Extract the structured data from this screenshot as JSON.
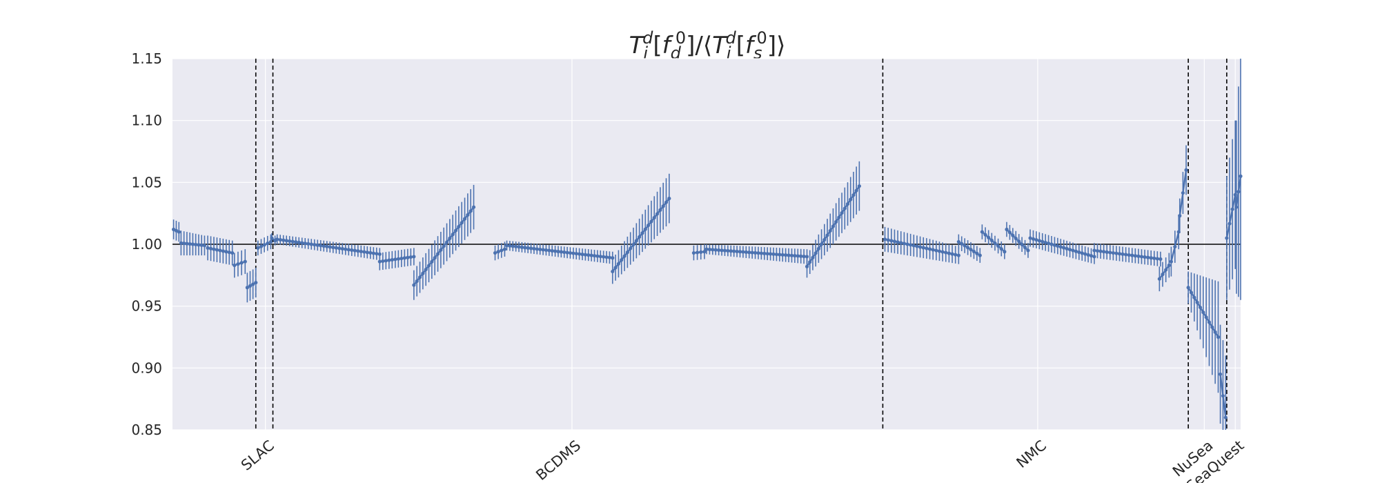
{
  "chart_data": {
    "type": "scatter",
    "title": {
      "runs": [
        {
          "t": "T",
          "s": "main"
        },
        {
          "t": "i",
          "s": "sub"
        },
        {
          "t": "d",
          "s": "sup"
        },
        {
          "t": "[",
          "s": "plain"
        },
        {
          "t": "f",
          "s": "main"
        },
        {
          "t": "d",
          "s": "sub"
        },
        {
          "t": "0",
          "s": "sup"
        },
        {
          "t": "]/⟨",
          "s": "plain"
        },
        {
          "t": "T",
          "s": "main"
        },
        {
          "t": "i",
          "s": "sub"
        },
        {
          "t": "d",
          "s": "sup"
        },
        {
          "t": "[",
          "s": "plain"
        },
        {
          "t": "f",
          "s": "main"
        },
        {
          "t": "s",
          "s": "sub"
        },
        {
          "t": "0",
          "s": "sup"
        },
        {
          "t": "]⟩",
          "s": "plain"
        }
      ]
    },
    "ylim": [
      0.85,
      1.15
    ],
    "yticks": [
      "0.85",
      "0.90",
      "0.95",
      "1.00",
      "1.05",
      "1.10",
      "1.15"
    ],
    "xlim": [
      0,
      1000
    ],
    "reference_line": 1.0,
    "grid": true,
    "boundaries": [
      78,
      94,
      665,
      951,
      987
    ],
    "category_labels": [
      {
        "label": "SLAC",
        "x": 87
      },
      {
        "label": "BCDMS",
        "x": 374
      },
      {
        "label": "NMC",
        "x": 810
      },
      {
        "label": "NuSea",
        "x": 966
      },
      {
        "label": "SeaQuest",
        "x": 995
      }
    ],
    "colors": {
      "points": "#4c72b0",
      "background": "#eaeaf2",
      "grid": "#ffffff",
      "boundary": "#000000"
    },
    "segments": [
      {
        "x0": 1,
        "x1": 6,
        "y0": 1.012,
        "y1": 1.01,
        "e0": 0.008,
        "e1": 0.008,
        "n": 3
      },
      {
        "x0": 8,
        "x1": 30,
        "y0": 1.001,
        "y1": 0.999,
        "e0": 0.01,
        "e1": 0.008,
        "n": 9
      },
      {
        "x0": 33,
        "x1": 56,
        "y0": 0.997,
        "y1": 0.993,
        "e0": 0.01,
        "e1": 0.01,
        "n": 9
      },
      {
        "x0": 58,
        "x1": 68,
        "y0": 0.983,
        "y1": 0.986,
        "e0": 0.01,
        "e1": 0.01,
        "n": 4
      },
      {
        "x0": 70,
        "x1": 78,
        "y0": 0.965,
        "y1": 0.969,
        "e0": 0.012,
        "e1": 0.012,
        "n": 4
      },
      {
        "x0": 80,
        "x1": 92,
        "y0": 0.997,
        "y1": 1.002,
        "e0": 0.006,
        "e1": 0.006,
        "n": 5
      },
      {
        "x0": 93,
        "x1": 96,
        "y0": 1.005,
        "y1": 1.003,
        "e0": 0.004,
        "e1": 0.004,
        "n": 2
      },
      {
        "x0": 98,
        "x1": 194,
        "y0": 1.004,
        "y1": 0.992,
        "e0": 0.004,
        "e1": 0.005,
        "n": 34
      },
      {
        "x0": 194,
        "x1": 226,
        "y0": 0.986,
        "y1": 0.99,
        "e0": 0.007,
        "e1": 0.007,
        "n": 12
      },
      {
        "x0": 226,
        "x1": 282,
        "y0": 0.967,
        "y1": 1.03,
        "e0": 0.012,
        "e1": 0.018,
        "n": 21
      },
      {
        "x0": 302,
        "x1": 311,
        "y0": 0.993,
        "y1": 0.996,
        "e0": 0.006,
        "e1": 0.006,
        "n": 4
      },
      {
        "x0": 313,
        "x1": 412,
        "y0": 0.999,
        "y1": 0.989,
        "e0": 0.004,
        "e1": 0.005,
        "n": 36
      },
      {
        "x0": 412,
        "x1": 465,
        "y0": 0.978,
        "y1": 1.037,
        "e0": 0.01,
        "e1": 0.02,
        "n": 20
      },
      {
        "x0": 488,
        "x1": 498,
        "y0": 0.993,
        "y1": 0.994,
        "e0": 0.006,
        "e1": 0.006,
        "n": 4
      },
      {
        "x0": 500,
        "x1": 594,
        "y0": 0.996,
        "y1": 0.99,
        "e0": 0.004,
        "e1": 0.006,
        "n": 34
      },
      {
        "x0": 594,
        "x1": 643,
        "y0": 0.982,
        "y1": 1.047,
        "e0": 0.009,
        "e1": 0.02,
        "n": 19
      },
      {
        "x0": 667,
        "x1": 736,
        "y0": 1.004,
        "y1": 0.991,
        "e0": 0.01,
        "e1": 0.007,
        "n": 24
      },
      {
        "x0": 736,
        "x1": 756,
        "y0": 1.002,
        "y1": 0.991,
        "e0": 0.006,
        "e1": 0.006,
        "n": 8
      },
      {
        "x0": 758,
        "x1": 779,
        "y0": 1.01,
        "y1": 0.994,
        "e0": 0.006,
        "e1": 0.006,
        "n": 8
      },
      {
        "x0": 781,
        "x1": 801,
        "y0": 1.012,
        "y1": 0.995,
        "e0": 0.006,
        "e1": 0.006,
        "n": 8
      },
      {
        "x0": 803,
        "x1": 863,
        "y0": 1.005,
        "y1": 0.99,
        "e0": 0.007,
        "e1": 0.006,
        "n": 22
      },
      {
        "x0": 863,
        "x1": 925,
        "y0": 0.995,
        "y1": 0.988,
        "e0": 0.006,
        "e1": 0.006,
        "n": 22
      },
      {
        "x0": 924,
        "x1": 933,
        "y0": 0.972,
        "y1": 0.983,
        "e0": 0.01,
        "e1": 0.01,
        "n": 4
      },
      {
        "x0": 935,
        "x1": 942,
        "y0": 0.986,
        "y1": 1.01,
        "e0": 0.012,
        "e1": 0.014,
        "n": 3
      },
      {
        "x0": 943,
        "x1": 949,
        "y0": 1.023,
        "y1": 1.06,
        "e0": 0.014,
        "e1": 0.02,
        "n": 3
      },
      {
        "x0": 951,
        "x1": 979,
        "y0": 0.965,
        "y1": 0.925,
        "e0": 0.013,
        "e1": 0.045,
        "n": 11
      },
      {
        "x0": 981,
        "x1": 986,
        "y0": 0.895,
        "y1": 0.86,
        "e0": 0.04,
        "e1": 0.05,
        "n": 3
      },
      {
        "x0": 987,
        "x1": 995,
        "y0": 1.005,
        "y1": 1.04,
        "e0": 0.05,
        "e1": 0.06,
        "n": 4
      },
      {
        "x0": 996,
        "x1": 1000,
        "y0": 1.03,
        "y1": 1.055,
        "e0": 0.07,
        "e1": 0.1,
        "n": 3
      }
    ]
  }
}
